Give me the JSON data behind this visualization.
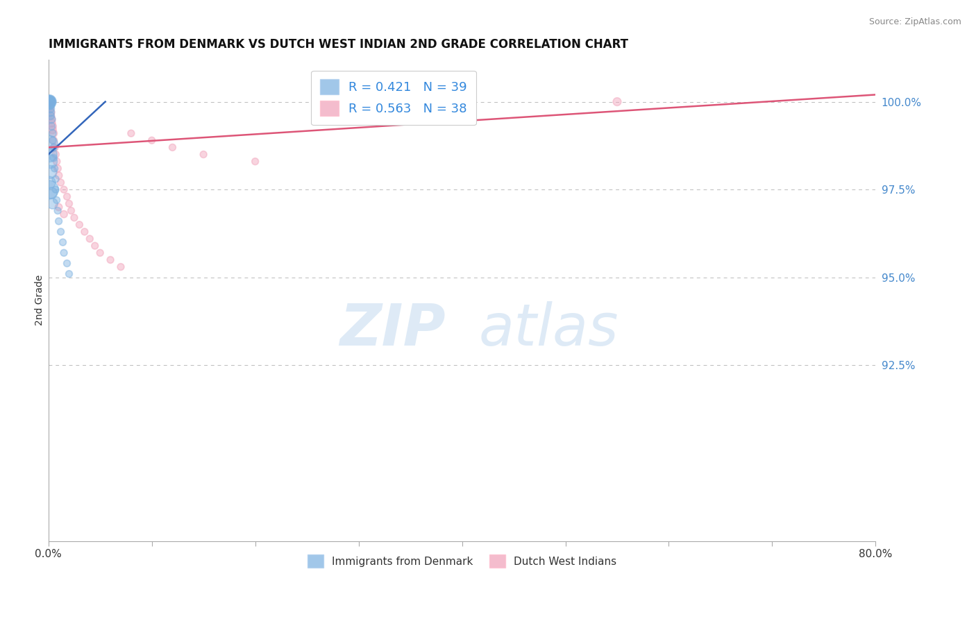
{
  "title": "IMMIGRANTS FROM DENMARK VS DUTCH WEST INDIAN 2ND GRADE CORRELATION CHART",
  "source": "Source: ZipAtlas.com",
  "ylabel": "2nd Grade",
  "xlim": [
    0.0,
    0.8
  ],
  "ylim": [
    0.875,
    1.012
  ],
  "xticks": [
    0.0,
    0.1,
    0.2,
    0.3,
    0.4,
    0.5,
    0.6,
    0.7,
    0.8
  ],
  "xticklabels": [
    "0.0%",
    "",
    "",
    "",
    "",
    "",
    "",
    "",
    "80.0%"
  ],
  "ytick_positions": [
    0.925,
    0.95,
    0.975,
    1.0
  ],
  "ytick_labels": [
    "92.5%",
    "95.0%",
    "97.5%",
    "100.0%"
  ],
  "blue_R": 0.421,
  "blue_N": 39,
  "pink_R": 0.563,
  "pink_N": 38,
  "blue_color": "#7ab0e0",
  "pink_color": "#f0a0b8",
  "blue_line_color": "#3366bb",
  "pink_line_color": "#dd5577",
  "legend_blue": "Immigrants from Denmark",
  "legend_pink": "Dutch West Indians",
  "watermark_zip": "ZIP",
  "watermark_atlas": "atlas",
  "background_color": "#ffffff",
  "blue_x": [
    0.001,
    0.001,
    0.001,
    0.001,
    0.001,
    0.001,
    0.001,
    0.001,
    0.001,
    0.001,
    0.002,
    0.002,
    0.002,
    0.002,
    0.003,
    0.003,
    0.004,
    0.004,
    0.005,
    0.005,
    0.006,
    0.007,
    0.007,
    0.008,
    0.009,
    0.01,
    0.012,
    0.014,
    0.015,
    0.018,
    0.02,
    0.001,
    0.001,
    0.002,
    0.002,
    0.001,
    0.003,
    0.004,
    0.001
  ],
  "blue_y": [
    1.0,
    1.0,
    1.0,
    1.0,
    1.0,
    1.0,
    1.0,
    1.0,
    1.0,
    0.999,
    0.999,
    0.998,
    0.997,
    0.996,
    0.995,
    0.993,
    0.991,
    0.989,
    0.987,
    0.984,
    0.981,
    0.978,
    0.975,
    0.972,
    0.969,
    0.966,
    0.963,
    0.96,
    0.957,
    0.954,
    0.951,
    0.988,
    0.985,
    0.983,
    0.98,
    0.977,
    0.974,
    0.971,
    0.975
  ],
  "blue_sizes": [
    200,
    180,
    160,
    140,
    130,
    120,
    110,
    100,
    90,
    80,
    80,
    70,
    70,
    65,
    65,
    60,
    60,
    55,
    55,
    55,
    50,
    50,
    50,
    50,
    50,
    50,
    50,
    50,
    50,
    50,
    50,
    300,
    250,
    200,
    180,
    160,
    140,
    120,
    350
  ],
  "pink_x": [
    0.001,
    0.001,
    0.001,
    0.001,
    0.002,
    0.002,
    0.003,
    0.003,
    0.004,
    0.004,
    0.005,
    0.005,
    0.006,
    0.007,
    0.008,
    0.009,
    0.01,
    0.012,
    0.015,
    0.018,
    0.02,
    0.022,
    0.025,
    0.03,
    0.035,
    0.04,
    0.045,
    0.05,
    0.06,
    0.07,
    0.08,
    0.1,
    0.12,
    0.15,
    0.2,
    0.55,
    0.01,
    0.015
  ],
  "pink_y": [
    1.0,
    1.0,
    0.999,
    0.998,
    0.997,
    0.996,
    0.995,
    0.994,
    0.993,
    0.992,
    0.991,
    0.989,
    0.987,
    0.985,
    0.983,
    0.981,
    0.979,
    0.977,
    0.975,
    0.973,
    0.971,
    0.969,
    0.967,
    0.965,
    0.963,
    0.961,
    0.959,
    0.957,
    0.955,
    0.953,
    0.991,
    0.989,
    0.987,
    0.985,
    0.983,
    1.0,
    0.97,
    0.968
  ],
  "pink_sizes": [
    100,
    90,
    85,
    80,
    80,
    75,
    70,
    70,
    65,
    65,
    60,
    60,
    60,
    55,
    55,
    55,
    55,
    50,
    50,
    50,
    50,
    50,
    50,
    50,
    50,
    50,
    50,
    50,
    50,
    50,
    50,
    50,
    50,
    50,
    50,
    70,
    55,
    55
  ],
  "blue_trend_x": [
    0.0,
    0.055
  ],
  "blue_trend_y": [
    0.985,
    1.0
  ],
  "pink_trend_x": [
    0.0,
    0.8
  ],
  "pink_trend_y": [
    0.987,
    1.002
  ]
}
